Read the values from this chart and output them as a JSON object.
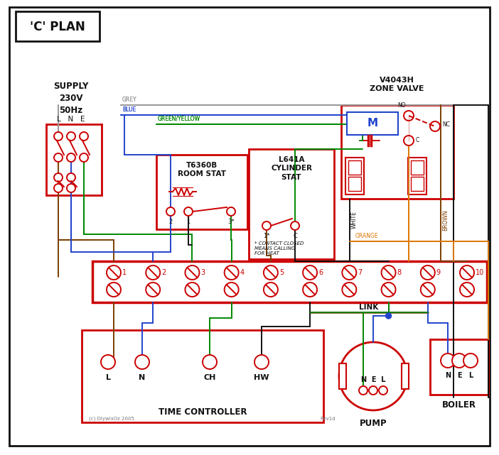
{
  "bg": "#ffffff",
  "red": "#cc0000",
  "blue": "#2244cc",
  "green": "#008800",
  "grey": "#999999",
  "brown": "#7B3F00",
  "orange": "#dd7700",
  "black": "#111111",
  "title": "'C' PLAN",
  "supply_text": "SUPPLY\n230V\n50Hz",
  "lne_text": "L   N   E",
  "room_stat_label": "T6360B\nROOM STAT",
  "cyl_stat_label": "L641A\nCYLINDER\nSTAT",
  "zone_valve_label": "V4043H\nZONE VALVE",
  "tc_label": "TIME CONTROLLER",
  "pump_label": "PUMP",
  "boiler_label": "BOILER",
  "link_label": "LINK",
  "contact_note": "* CONTACT CLOSED\nMEANS CALLING\nFOR HEAT",
  "grey_label": "GREY",
  "blue_label": "BLUE",
  "gy_label": "GREEN/YELLOW",
  "brown_label": "BROWN",
  "white_label": "WHITE",
  "orange_label": "ORANGE",
  "copyright": "(c) DiywixOz 2005",
  "rev": "Rev1d"
}
